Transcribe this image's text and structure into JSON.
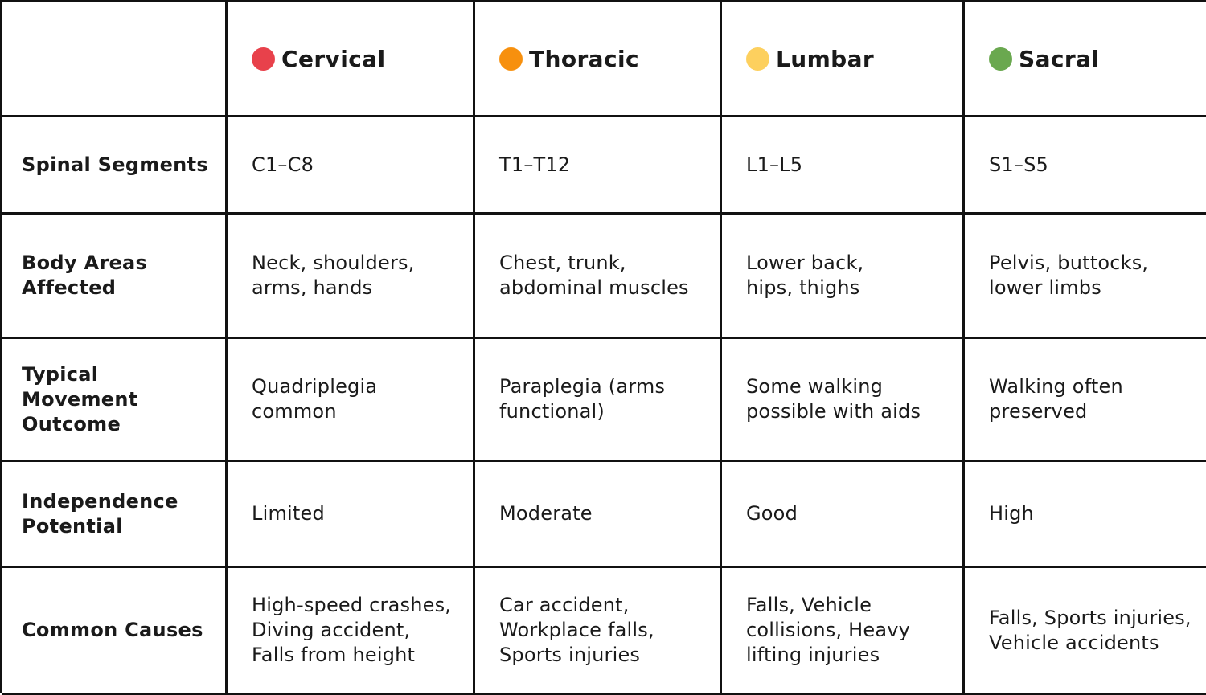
{
  "columns": [
    {
      "label": "Cervical",
      "color": "#e8414b"
    },
    {
      "label": "Thoracic",
      "color": "#f7900e"
    },
    {
      "label": "Lumbar",
      "color": "#fdd05e"
    },
    {
      "label": "Sacral",
      "color": "#6aa84f"
    }
  ],
  "rows": [
    {
      "label": "Spinal Segments",
      "cells": [
        "C1–C8",
        "T1–T12",
        "L1–L5",
        "S1–S5"
      ]
    },
    {
      "label": "Body Areas\nAffected",
      "cells": [
        "Neck, shoulders,\narms, hands",
        "Chest, trunk,\nabdominal muscles",
        "Lower back,\nhips, thighs",
        "Pelvis, buttocks,\nlower limbs"
      ]
    },
    {
      "label": "Typical Movement\nOutcome",
      "cells": [
        "Quadriplegia\ncommon",
        "Paraplegia (arms\nfunctional)",
        "Some walking\npossible with aids",
        "Walking often\npreserved"
      ]
    },
    {
      "label": "Independence\nPotential",
      "cells": [
        "Limited",
        "Moderate",
        "Good",
        "High"
      ]
    },
    {
      "label": "Common Causes",
      "cells": [
        "High-speed crashes,\nDiving accident,\nFalls from height",
        "Car accident,\nWorkplace falls,\nSports injuries",
        "Falls, Vehicle\ncollisions, Heavy\nlifting injuries",
        "Falls, Sports injuries,\nVehicle accidents"
      ]
    }
  ]
}
